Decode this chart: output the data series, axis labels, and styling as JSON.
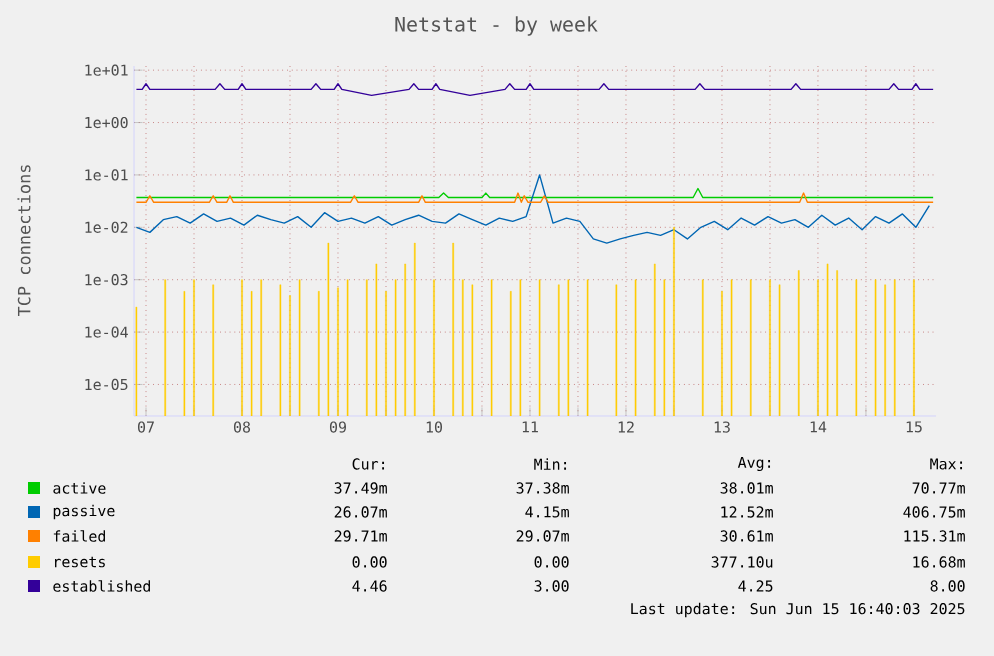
{
  "chart_data": {
    "type": "line",
    "title": "Netstat - by week",
    "ylabel": "TCP connections",
    "log": "y",
    "xlim": [
      7.375,
      15.73
    ],
    "ylim": [
      2.5e-06,
      12
    ],
    "xticks": [
      {
        "value": 7.5,
        "label": "07"
      },
      {
        "value": 8,
        "label": null
      },
      {
        "value": 8.5,
        "label": "08"
      },
      {
        "value": 9,
        "label": null
      },
      {
        "value": 9.5,
        "label": "09"
      },
      {
        "value": 10,
        "label": null
      },
      {
        "value": 10.5,
        "label": "10"
      },
      {
        "value": 11,
        "label": null
      },
      {
        "value": 11.5,
        "label": "11"
      },
      {
        "value": 12,
        "label": null
      },
      {
        "value": 12.5,
        "label": "12"
      },
      {
        "value": 13,
        "label": null
      },
      {
        "value": 13.5,
        "label": "13"
      },
      {
        "value": 14,
        "label": null
      },
      {
        "value": 14.5,
        "label": "14"
      },
      {
        "value": 15,
        "label": null
      },
      {
        "value": 15.5,
        "label": "15"
      }
    ],
    "yticks": [
      {
        "value": 10,
        "label": "1e+01"
      },
      {
        "value": 1,
        "label": "1e+00"
      },
      {
        "value": 0.1,
        "label": "1e-01"
      },
      {
        "value": 0.01,
        "label": "1e-02"
      },
      {
        "value": 0.001,
        "label": "1e-03"
      },
      {
        "value": 0.0001,
        "label": "1e-04"
      },
      {
        "value": 1e-05,
        "label": "1e-05"
      }
    ],
    "grid": true,
    "legend": "bottom",
    "series": [
      {
        "name": "active",
        "color": "#00cc00",
        "x": [
          7.4,
          10.55,
          10.6,
          10.65,
          11.0,
          11.04,
          11.08,
          13.2,
          13.25,
          13.3,
          15.7
        ],
        "values": [
          0.037,
          0.037,
          0.045,
          0.037,
          0.037,
          0.045,
          0.037,
          0.037,
          0.055,
          0.037,
          0.037
        ]
      },
      {
        "name": "passive",
        "color": "#0066b3",
        "x": [
          7.4,
          7.54,
          7.68,
          7.82,
          7.96,
          8.1,
          8.24,
          8.38,
          8.52,
          8.66,
          8.8,
          8.94,
          9.08,
          9.22,
          9.36,
          9.5,
          9.64,
          9.78,
          9.92,
          10.06,
          10.2,
          10.34,
          10.48,
          10.62,
          10.76,
          10.9,
          11.04,
          11.18,
          11.32,
          11.46,
          11.6,
          11.74,
          11.88,
          12.02,
          12.16,
          12.3,
          12.44,
          12.58,
          12.72,
          12.86,
          13.0,
          13.14,
          13.28,
          13.42,
          13.56,
          13.7,
          13.84,
          13.98,
          14.12,
          14.26,
          14.4,
          14.54,
          14.68,
          14.82,
          14.96,
          15.1,
          15.24,
          15.38,
          15.52,
          15.66
        ],
        "values": [
          0.01,
          0.008,
          0.014,
          0.016,
          0.012,
          0.018,
          0.013,
          0.015,
          0.011,
          0.017,
          0.014,
          0.012,
          0.016,
          0.01,
          0.019,
          0.013,
          0.015,
          0.012,
          0.016,
          0.011,
          0.014,
          0.017,
          0.013,
          0.012,
          0.018,
          0.014,
          0.011,
          0.015,
          0.013,
          0.016,
          0.1,
          0.012,
          0.015,
          0.013,
          0.006,
          0.005,
          0.006,
          0.007,
          0.008,
          0.007,
          0.009,
          0.006,
          0.01,
          0.013,
          0.009,
          0.015,
          0.011,
          0.016,
          0.012,
          0.014,
          0.01,
          0.017,
          0.011,
          0.015,
          0.009,
          0.016,
          0.012,
          0.018,
          0.01,
          0.026
        ]
      },
      {
        "name": "failed",
        "color": "#ff8000",
        "x": [
          7.4,
          7.5,
          7.54,
          7.58,
          8.16,
          8.2,
          8.24,
          8.34,
          8.375,
          8.41,
          9.63,
          9.67,
          9.71,
          10.34,
          10.375,
          10.41,
          11.34,
          11.375,
          11.41,
          11.44,
          11.48,
          11.61,
          11.65,
          11.69,
          14.31,
          14.35,
          14.39,
          15.7
        ],
        "values": [
          0.03,
          0.03,
          0.04,
          0.03,
          0.03,
          0.04,
          0.03,
          0.03,
          0.04,
          0.03,
          0.03,
          0.04,
          0.03,
          0.03,
          0.04,
          0.03,
          0.03,
          0.045,
          0.03,
          0.04,
          0.03,
          0.03,
          0.04,
          0.03,
          0.03,
          0.045,
          0.03,
          0.03
        ]
      },
      {
        "name": "resets",
        "color": "#ffcc00",
        "type": "bar",
        "x": [
          7.4,
          7.5,
          7.6,
          7.7,
          7.8,
          7.9,
          8.0,
          8.1,
          8.2,
          8.3,
          8.4,
          8.5,
          8.6,
          8.7,
          8.8,
          8.9,
          9.0,
          9.1,
          9.2,
          9.3,
          9.4,
          9.5,
          9.6,
          9.7,
          9.8,
          9.9,
          10.0,
          10.1,
          10.2,
          10.3,
          10.4,
          10.5,
          10.6,
          10.7,
          10.8,
          10.9,
          11.0,
          11.1,
          11.2,
          11.3,
          11.4,
          11.5,
          11.6,
          11.7,
          11.8,
          11.9,
          12.0,
          12.1,
          12.2,
          12.3,
          12.4,
          12.5,
          12.6,
          12.7,
          12.8,
          12.9,
          13.0,
          13.1,
          13.2,
          13.3,
          13.4,
          13.5,
          13.6,
          13.7,
          13.8,
          13.9,
          14.0,
          14.1,
          14.2,
          14.3,
          14.4,
          14.5,
          14.6,
          14.7,
          14.8,
          14.9,
          15.0,
          15.1,
          15.2,
          15.3,
          15.4,
          15.5
        ],
        "values": [
          0.0003,
          null,
          null,
          0.001,
          null,
          0.0006,
          0.001,
          null,
          0.0008,
          null,
          null,
          0.001,
          0.0006,
          0.001,
          null,
          0.0008,
          0.0005,
          0.001,
          null,
          0.0006,
          0.005,
          0.0007,
          0.001,
          null,
          0.001,
          0.002,
          0.0006,
          0.001,
          0.002,
          0.005,
          null,
          0.001,
          null,
          0.005,
          0.001,
          0.0008,
          null,
          0.001,
          null,
          0.0006,
          0.001,
          null,
          0.001,
          null,
          0.0008,
          0.001,
          null,
          0.001,
          null,
          null,
          0.0008,
          null,
          0.001,
          null,
          0.002,
          0.001,
          0.01,
          null,
          null,
          0.001,
          null,
          0.0006,
          0.001,
          null,
          0.001,
          null,
          0.001,
          0.0008,
          null,
          0.0015,
          null,
          0.001,
          0.002,
          0.0015,
          null,
          0.001,
          null,
          0.001,
          0.0008,
          0.001,
          null,
          0.001
        ]
      },
      {
        "name": "established",
        "color": "#330099",
        "x": [
          7.4,
          7.46,
          7.5,
          7.54,
          8.22,
          8.27,
          8.32,
          8.46,
          8.5,
          8.54,
          9.22,
          9.27,
          9.32,
          9.46,
          9.5,
          9.54,
          9.85,
          10.24,
          10.29,
          10.34,
          10.48,
          10.52,
          10.56,
          10.875,
          11.24,
          11.29,
          11.34,
          11.46,
          11.5,
          11.54,
          12.22,
          12.27,
          12.32,
          13.22,
          13.27,
          13.32,
          14.22,
          14.27,
          14.32,
          15.24,
          15.29,
          15.34,
          15.48,
          15.52,
          15.56,
          15.7
        ],
        "values": [
          4.3,
          4.3,
          5.5,
          4.3,
          4.3,
          5.5,
          4.3,
          4.3,
          5.5,
          4.3,
          4.3,
          5.5,
          4.3,
          4.3,
          5.5,
          4.3,
          3.3,
          4.3,
          5.5,
          4.3,
          4.3,
          5.5,
          4.3,
          3.3,
          4.3,
          5.5,
          4.3,
          4.3,
          5.5,
          4.3,
          4.3,
          5.5,
          4.3,
          4.3,
          5.5,
          4.3,
          4.3,
          5.5,
          4.3,
          4.3,
          5.5,
          4.3,
          4.3,
          5.5,
          4.3,
          4.3
        ]
      }
    ],
    "annotations": [
      "Cur:",
      "Min:",
      "Avg:",
      "Max:",
      "37.49m",
      "37.38m",
      "38.01m",
      "70.77m",
      "26.07m",
      "4.15m",
      "12.52m",
      "406.75m",
      "29.71m",
      "29.07m",
      "30.61m",
      "115.31m",
      "0.00",
      "0.00",
      "377.10u",
      "16.68m",
      "4.46",
      "3.00",
      "4.25",
      "8.00",
      "Last update: Sun Jun 15 16:40:03 2025"
    ]
  }
}
